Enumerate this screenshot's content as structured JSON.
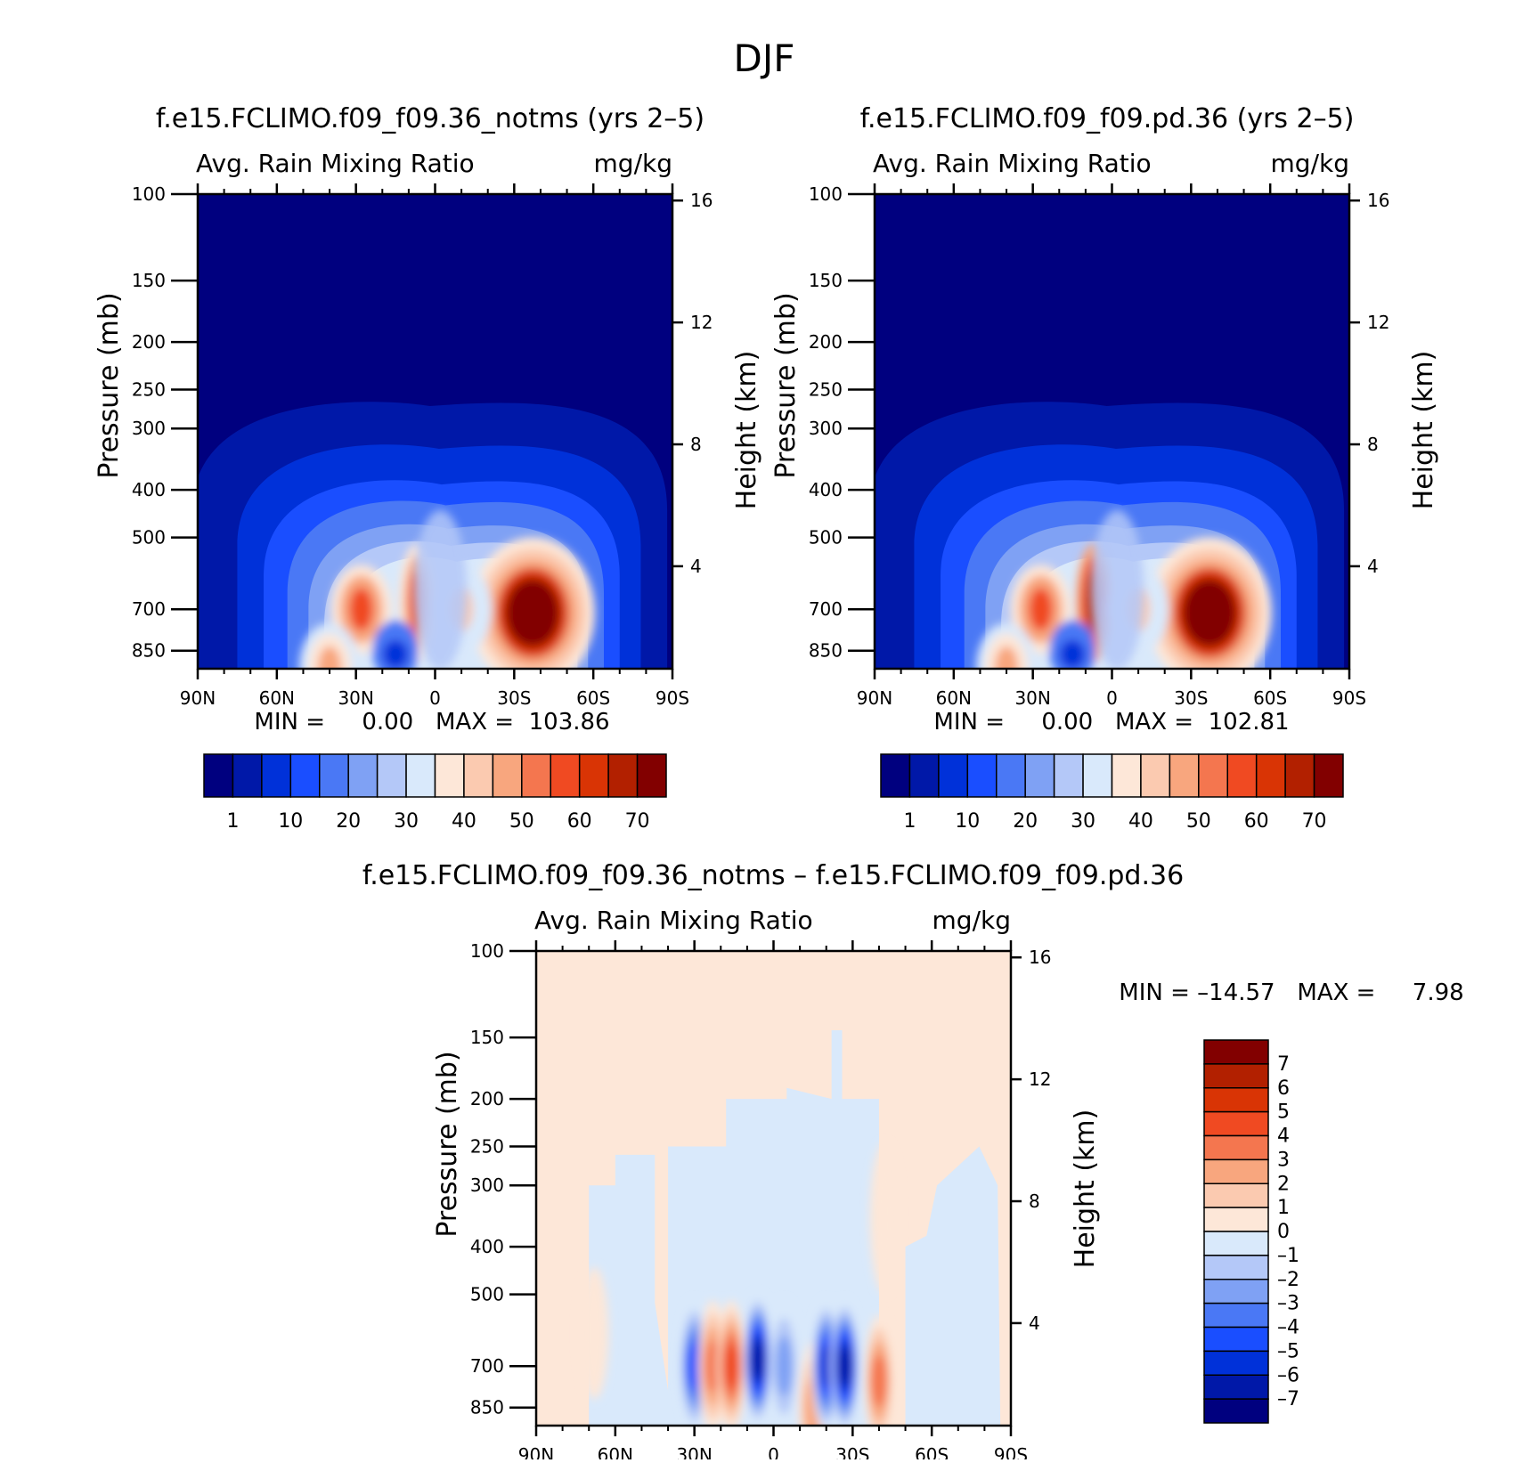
{
  "page_title": "DJF",
  "colors": {
    "abs_levels": [
      "#00007f",
      "#0018a8",
      "#0031d9",
      "#1a4eff",
      "#4a78f5",
      "#7fa1f4",
      "#b4c8f8",
      "#d9e9fb",
      "#fde7d8",
      "#fbcab0",
      "#f8a67e",
      "#f4764f",
      "#f04a22",
      "#d93405",
      "#b22000",
      "#820000"
    ],
    "diff_levels": [
      "#00007f",
      "#0018a8",
      "#0031d9",
      "#1a4eff",
      "#4a78f5",
      "#7fa1f4",
      "#b4c8f8",
      "#d9e9fb",
      "#fde7d8",
      "#fbcab0",
      "#f8a67e",
      "#f4764f",
      "#f04a22",
      "#d93405",
      "#b22000",
      "#820000"
    ]
  },
  "panels": [
    {
      "id": "left",
      "title": "f.e15.FCLIMO.f09_f09.36_notms (yrs 2–5)",
      "subtitle_left": "Avg. Rain Mixing Ratio",
      "subtitle_right": "mg/kg",
      "ylabel": "Pressure (mb)",
      "y2label": "Height (km)",
      "minmax": "MIN =     0.00   MAX =  103.86",
      "colorbar_labels": [
        "1",
        "10",
        "20",
        "30",
        "40",
        "50",
        "60",
        "70"
      ]
    },
    {
      "id": "right",
      "title": "f.e15.FCLIMO.f09_f09.pd.36 (yrs 2–5)",
      "subtitle_left": "Avg. Rain Mixing Ratio",
      "subtitle_right": "mg/kg",
      "ylabel": "Pressure (mb)",
      "y2label": "Height (km)",
      "minmax": "MIN =     0.00   MAX =  102.81",
      "colorbar_labels": [
        "1",
        "10",
        "20",
        "30",
        "40",
        "50",
        "60",
        "70"
      ]
    },
    {
      "id": "diff",
      "title": "f.e15.FCLIMO.f09_f09.36_notms – f.e15.FCLIMO.f09_f09.pd.36",
      "subtitle_left": "Avg. Rain Mixing Ratio",
      "subtitle_right": "mg/kg",
      "ylabel": "Pressure (mb)",
      "y2label": "Height (km)",
      "minmax": "MIN = –14.57   MAX =     7.98",
      "colorbar_labels": [
        "7",
        "6",
        "5",
        "4",
        "3",
        "2",
        "1",
        "0",
        "–1",
        "–2",
        "–3",
        "–4",
        "–5",
        "–6",
        "–7"
      ]
    }
  ],
  "chart_data": [
    {
      "type": "heatmap",
      "title": "f.e15.FCLIMO.f09_f09.36_notms (yrs 2–5)",
      "field": "Avg. Rain Mixing Ratio",
      "units": "mg/kg",
      "x_ticks": [
        "90N",
        "60N",
        "30N",
        "0",
        "30S",
        "60S",
        "90S"
      ],
      "x_values": [
        90,
        60,
        30,
        0,
        -30,
        -60,
        -90
      ],
      "xlim": [
        90,
        -90
      ],
      "ylabel": "Pressure (mb)",
      "y_ticks": [
        100,
        150,
        200,
        250,
        300,
        400,
        500,
        700,
        850
      ],
      "ylim": [
        100,
        925
      ],
      "y_scale": "log",
      "y2label": "Height (km)",
      "y2_ticks": [
        4,
        8,
        12,
        16
      ],
      "levels": [
        1,
        5,
        10,
        15,
        20,
        25,
        30,
        35,
        40,
        45,
        50,
        55,
        60,
        65,
        70
      ],
      "min": 0.0,
      "max": 103.86,
      "features": [
        {
          "lat": -37,
          "p": 700,
          "value": 80,
          "desc": "main maximum"
        },
        {
          "lat": 28,
          "p": 700,
          "value": 55
        },
        {
          "lat": 7,
          "p": 680,
          "value": 55
        },
        {
          "lat": -10,
          "p": 700,
          "value": 40
        },
        {
          "lat": 40,
          "p": 920,
          "value": 45
        },
        {
          "lat": 15,
          "p": 850,
          "value": 8,
          "desc": "local minimum"
        }
      ]
    },
    {
      "type": "heatmap",
      "title": "f.e15.FCLIMO.f09_f09.pd.36 (yrs 2–5)",
      "field": "Avg. Rain Mixing Ratio",
      "units": "mg/kg",
      "x_ticks": [
        "90N",
        "60N",
        "30N",
        "0",
        "30S",
        "60S",
        "90S"
      ],
      "x_values": [
        90,
        60,
        30,
        0,
        -30,
        -60,
        -90
      ],
      "xlim": [
        90,
        -90
      ],
      "ylabel": "Pressure (mb)",
      "y_ticks": [
        100,
        150,
        200,
        250,
        300,
        400,
        500,
        700,
        850
      ],
      "ylim": [
        100,
        925
      ],
      "y_scale": "log",
      "y2label": "Height (km)",
      "y2_ticks": [
        4,
        8,
        12,
        16
      ],
      "levels": [
        1,
        5,
        10,
        15,
        20,
        25,
        30,
        35,
        40,
        45,
        50,
        55,
        60,
        65,
        70
      ],
      "min": 0.0,
      "max": 102.81,
      "features": [
        {
          "lat": -37,
          "p": 700,
          "value": 80,
          "desc": "main maximum"
        },
        {
          "lat": 27,
          "p": 700,
          "value": 55
        },
        {
          "lat": 7,
          "p": 680,
          "value": 65
        },
        {
          "lat": -10,
          "p": 700,
          "value": 40
        },
        {
          "lat": 40,
          "p": 920,
          "value": 45
        },
        {
          "lat": 15,
          "p": 850,
          "value": 8,
          "desc": "local minimum"
        }
      ]
    },
    {
      "type": "heatmap",
      "title": "f.e15.FCLIMO.f09_f09.36_notms – f.e15.FCLIMO.f09_f09.pd.36",
      "field": "Avg. Rain Mixing Ratio",
      "units": "mg/kg",
      "x_ticks": [
        "90N",
        "60N",
        "30N",
        "0",
        "30S",
        "60S",
        "90S"
      ],
      "x_values": [
        90,
        60,
        30,
        0,
        -30,
        -60,
        -90
      ],
      "xlim": [
        90,
        -90
      ],
      "ylabel": "Pressure (mb)",
      "y_ticks": [
        100,
        150,
        200,
        250,
        300,
        400,
        500,
        700,
        850
      ],
      "ylim": [
        100,
        925
      ],
      "y_scale": "log",
      "y2label": "Height (km)",
      "y2_ticks": [
        4,
        8,
        12,
        16
      ],
      "levels": [
        -7,
        -6,
        -5,
        -4,
        -3,
        -2,
        -1,
        0,
        1,
        2,
        3,
        4,
        5,
        6,
        7
      ],
      "min": -14.57,
      "max": 7.98,
      "features": [
        {
          "lat": 30,
          "p": 700,
          "value": -5
        },
        {
          "lat": 23,
          "p": 700,
          "value": 4
        },
        {
          "lat": 16,
          "p": 700,
          "value": 5
        },
        {
          "lat": 6,
          "p": 680,
          "value": -7
        },
        {
          "lat": -4,
          "p": 700,
          "value": -3
        },
        {
          "lat": -15,
          "p": 850,
          "value": 3
        },
        {
          "lat": -20,
          "p": 700,
          "value": -6
        },
        {
          "lat": -27,
          "p": 700,
          "value": -7
        },
        {
          "lat": -40,
          "p": 750,
          "value": 4
        },
        {
          "lat": -42,
          "p": 350,
          "value": 1
        },
        {
          "lat": 68,
          "p": 600,
          "value": 1
        }
      ]
    }
  ]
}
